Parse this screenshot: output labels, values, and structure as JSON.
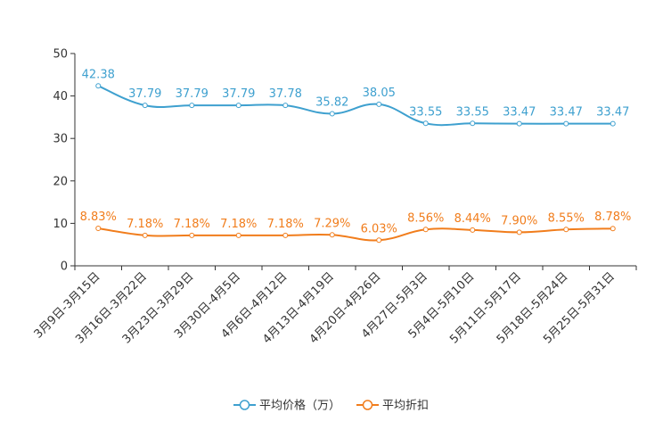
{
  "chart_data": {
    "type": "line",
    "title": "",
    "xlabel": "",
    "ylabel": "",
    "ylim": [
      0,
      50
    ],
    "yticks": [
      0,
      10,
      20,
      30,
      40,
      50
    ],
    "grid": false,
    "legend_position": "bottom-center",
    "categories": [
      "3月9日-3月15日",
      "3月16日-3月22日",
      "3月23日-3月29日",
      "3月30日-4月5日",
      "4月6日-4月12日",
      "4月13日-4月19日",
      "4月20日-4月26日",
      "4月27日-5月3日",
      "5月4日-5月10日",
      "5月11日-5月17日",
      "5月18日-5月24日",
      "5月25日-5月31日"
    ],
    "series": [
      {
        "name": "平均价格（万）",
        "color": "#3ea0cf",
        "values": [
          42.38,
          37.79,
          37.79,
          37.79,
          37.78,
          35.82,
          38.05,
          33.55,
          33.55,
          33.47,
          33.47,
          33.47
        ],
        "labels": [
          "42.38",
          "37.79",
          "37.79",
          "37.79",
          "37.78",
          "35.82",
          "38.05",
          "33.55",
          "33.55",
          "33.47",
          "33.47",
          "33.47"
        ]
      },
      {
        "name": "平均折扣",
        "color": "#f17d1c",
        "values": [
          8.83,
          7.18,
          7.18,
          7.18,
          7.18,
          7.29,
          6.03,
          8.56,
          8.44,
          7.9,
          8.55,
          8.78
        ],
        "labels": [
          "8.83%",
          "7.18%",
          "7.18%",
          "7.18%",
          "7.18%",
          "7.29%",
          "6.03%",
          "8.56%",
          "8.44%",
          "7.90%",
          "8.55%",
          "8.78%"
        ]
      }
    ]
  }
}
